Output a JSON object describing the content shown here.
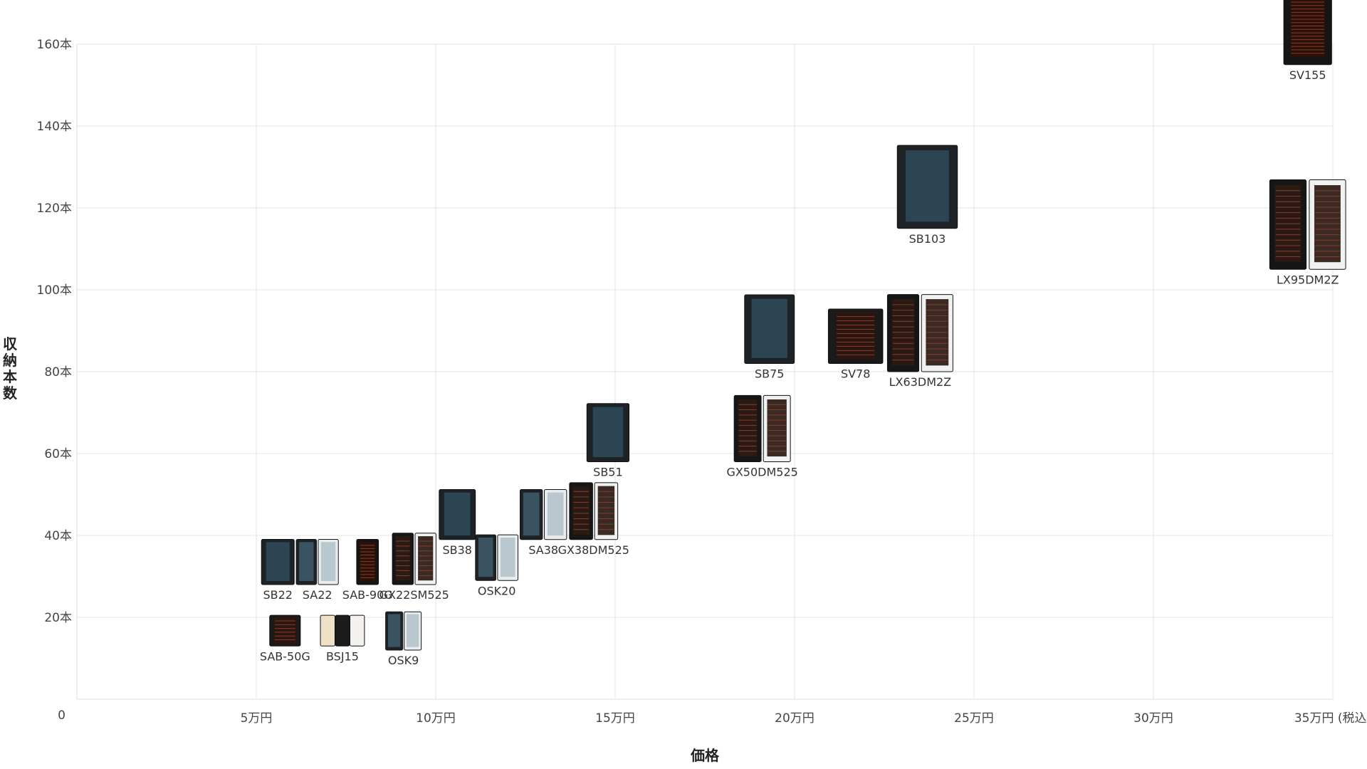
{
  "chart_data": {
    "type": "scatter",
    "xlabel": "価格",
    "ylabel": "収納本数",
    "xlim": [
      0,
      350000
    ],
    "ylim": [
      0,
      160
    ],
    "grid": true,
    "x_ticks": [
      {
        "value": 50000,
        "label": "5万円"
      },
      {
        "value": 100000,
        "label": "10万円"
      },
      {
        "value": 150000,
        "label": "15万円"
      },
      {
        "value": 200000,
        "label": "20万円"
      },
      {
        "value": 250000,
        "label": "25万円"
      },
      {
        "value": 300000,
        "label": "30万円"
      },
      {
        "value": 350000,
        "label": "35万円 (税込)"
      }
    ],
    "y_ticks": [
      {
        "value": 0,
        "label": "0"
      },
      {
        "value": 20,
        "label": "20本"
      },
      {
        "value": 40,
        "label": "40本"
      },
      {
        "value": 60,
        "label": "60本"
      },
      {
        "value": 80,
        "label": "80本"
      },
      {
        "value": 100,
        "label": "100本"
      },
      {
        "value": 120,
        "label": "120本"
      },
      {
        "value": 140,
        "label": "140本"
      },
      {
        "value": 160,
        "label": "160本"
      }
    ],
    "points": [
      {
        "name": "SAB-50G",
        "x": 58000,
        "y": 13,
        "style": "black"
      },
      {
        "name": "BSJ15",
        "x": 74000,
        "y": 13,
        "style": "beige-trio"
      },
      {
        "name": "OSK9",
        "x": 91000,
        "y": 12,
        "style": "glass-pair"
      },
      {
        "name": "SB22",
        "x": 56000,
        "y": 28,
        "style": "glass"
      },
      {
        "name": "SA22",
        "x": 67000,
        "y": 28,
        "style": "glass-pair"
      },
      {
        "name": "SAB-90G",
        "x": 81000,
        "y": 28,
        "style": "tall-black"
      },
      {
        "name": "GX22SM525",
        "x": 94000,
        "y": 28,
        "style": "dual-black-white"
      },
      {
        "name": "SB38",
        "x": 106000,
        "y": 39,
        "style": "glass"
      },
      {
        "name": "OSK20",
        "x": 117000,
        "y": 29,
        "style": "glass-pair"
      },
      {
        "name": "SA38",
        "x": 130000,
        "y": 39,
        "style": "glass-pair"
      },
      {
        "name": "GX38DM525",
        "x": 144000,
        "y": 39,
        "style": "dual-black-white"
      },
      {
        "name": "SB51",
        "x": 148000,
        "y": 58,
        "style": "glass"
      },
      {
        "name": "GX50DM525",
        "x": 191000,
        "y": 58,
        "style": "dual-black-white"
      },
      {
        "name": "SB75",
        "x": 193000,
        "y": 82,
        "style": "glass"
      },
      {
        "name": "SV78",
        "x": 217000,
        "y": 82,
        "style": "black"
      },
      {
        "name": "LX63DM2Z",
        "x": 235000,
        "y": 80,
        "style": "dual-black-white"
      },
      {
        "name": "SB103",
        "x": 237000,
        "y": 115,
        "style": "glass"
      },
      {
        "name": "LX95DM2Z",
        "x": 343000,
        "y": 105,
        "style": "dual-black-white"
      },
      {
        "name": "SV155",
        "x": 343000,
        "y": 155,
        "style": "tall-black"
      }
    ]
  }
}
